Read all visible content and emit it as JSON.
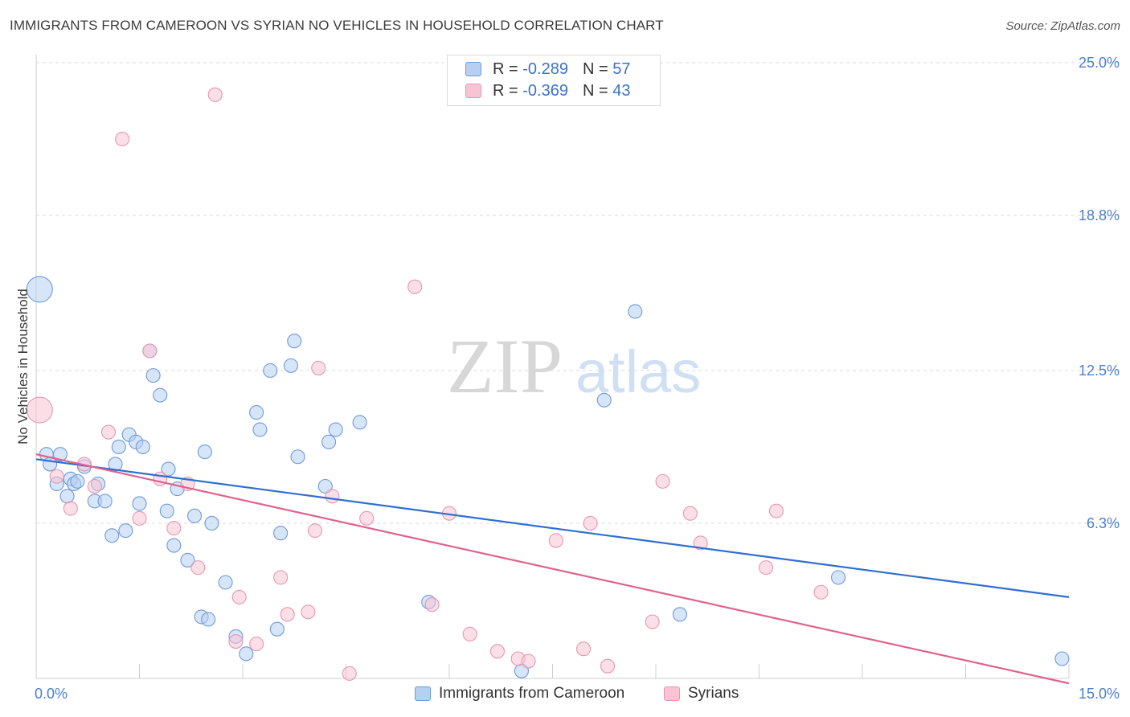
{
  "header": {
    "title": "IMMIGRANTS FROM CAMEROON VS SYRIAN NO VEHICLES IN HOUSEHOLD CORRELATION CHART",
    "source": "Source: ZipAtlas.com"
  },
  "watermark": {
    "zip": "ZIP",
    "atlas": "atlas"
  },
  "legend": {
    "rows": [
      {
        "r_label": "R =",
        "r_value": "-0.289",
        "n_label": "N =",
        "n_value": "57"
      },
      {
        "r_label": "R =",
        "r_value": "-0.369",
        "n_label": "N =",
        "n_value": "43"
      }
    ]
  },
  "bottom_legend": {
    "series_a": "Immigrants from Cameroon",
    "series_b": "Syrians"
  },
  "colors": {
    "blue_fill": "#b6d0f2",
    "blue_stroke": "#6f9ad8",
    "blue_line": "#2f6fd1",
    "pink_fill": "#f8c4d4",
    "pink_stroke": "#e896b0",
    "pink_line": "#e0628d",
    "tick_text": "#4a7fd0",
    "grid": "#d9d9d9"
  },
  "chart_data": {
    "type": "scatter",
    "title": "IMMIGRANTS FROM CAMEROON VS SYRIAN NO VEHICLES IN HOUSEHOLD CORRELATION CHART",
    "xlabel": "",
    "ylabel": "No Vehicles in Household",
    "xlim": [
      0,
      15
    ],
    "ylim": [
      0,
      25
    ],
    "x_tick_labels": [
      "0.0%",
      "15.0%"
    ],
    "y_tick_labels": [
      "6.3%",
      "12.5%",
      "18.8%",
      "25.0%"
    ],
    "y_ticks": [
      6.3,
      12.5,
      18.8,
      25.0
    ],
    "grid": true,
    "legend_position": "top-center",
    "series": [
      {
        "name": "Immigrants from Cameroon",
        "r": -0.289,
        "n": 57,
        "trend": {
          "x0": 0,
          "y0": 8.9,
          "x1": 15,
          "y1": 3.3
        },
        "points": [
          [
            0.05,
            15.8,
            3
          ],
          [
            0.15,
            9.1,
            1
          ],
          [
            0.2,
            8.7,
            1
          ],
          [
            0.35,
            9.1,
            1
          ],
          [
            0.3,
            7.9,
            1
          ],
          [
            0.45,
            7.4,
            1
          ],
          [
            0.5,
            8.1,
            1
          ],
          [
            0.55,
            7.9,
            1
          ],
          [
            0.6,
            8.0,
            1
          ],
          [
            0.7,
            8.6,
            1
          ],
          [
            0.85,
            7.2,
            1
          ],
          [
            0.9,
            7.9,
            1
          ],
          [
            1.0,
            7.2,
            1
          ],
          [
            1.1,
            5.8,
            1
          ],
          [
            1.15,
            8.7,
            1
          ],
          [
            1.2,
            9.4,
            1
          ],
          [
            1.3,
            6.0,
            1
          ],
          [
            1.35,
            9.9,
            1
          ],
          [
            1.45,
            9.6,
            1
          ],
          [
            1.5,
            7.1,
            1
          ],
          [
            1.55,
            9.4,
            1
          ],
          [
            1.65,
            13.3,
            1
          ],
          [
            1.7,
            12.3,
            1
          ],
          [
            1.8,
            11.5,
            1
          ],
          [
            1.9,
            6.8,
            1
          ],
          [
            1.92,
            8.5,
            1
          ],
          [
            2.0,
            5.4,
            1
          ],
          [
            2.05,
            7.7,
            1
          ],
          [
            2.2,
            4.8,
            1
          ],
          [
            2.3,
            6.6,
            1
          ],
          [
            2.4,
            2.5,
            1
          ],
          [
            2.45,
            9.2,
            1
          ],
          [
            2.5,
            2.4,
            1
          ],
          [
            2.55,
            6.3,
            1
          ],
          [
            2.75,
            3.9,
            1
          ],
          [
            2.9,
            1.7,
            1
          ],
          [
            3.05,
            1.0,
            1
          ],
          [
            3.2,
            10.8,
            1
          ],
          [
            3.25,
            10.1,
            1
          ],
          [
            3.4,
            12.5,
            1
          ],
          [
            3.5,
            2.0,
            1
          ],
          [
            3.55,
            5.9,
            1
          ],
          [
            3.7,
            12.7,
            1
          ],
          [
            3.75,
            13.7,
            1
          ],
          [
            3.8,
            9.0,
            1
          ],
          [
            4.2,
            7.8,
            1
          ],
          [
            4.25,
            9.6,
            1
          ],
          [
            4.35,
            10.1,
            1
          ],
          [
            4.7,
            10.4,
            1
          ],
          [
            5.7,
            3.1,
            1
          ],
          [
            7.05,
            0.3,
            1
          ],
          [
            8.25,
            11.3,
            1
          ],
          [
            8.7,
            14.9,
            1
          ],
          [
            9.35,
            2.6,
            1
          ],
          [
            11.65,
            4.1,
            1
          ],
          [
            14.9,
            0.8,
            1
          ]
        ]
      },
      {
        "name": "Syrians",
        "r": -0.369,
        "n": 43,
        "trend": {
          "x0": 0,
          "y0": 9.1,
          "x1": 15,
          "y1": -0.2
        },
        "points": [
          [
            0.05,
            10.9,
            3
          ],
          [
            0.3,
            8.2,
            1
          ],
          [
            0.5,
            6.9,
            1
          ],
          [
            0.7,
            8.7,
            1
          ],
          [
            0.85,
            7.8,
            1
          ],
          [
            1.05,
            10.0,
            1
          ],
          [
            1.25,
            21.9,
            1
          ],
          [
            1.5,
            6.5,
            1
          ],
          [
            1.65,
            13.3,
            1
          ],
          [
            1.8,
            8.1,
            1
          ],
          [
            2.0,
            6.1,
            1
          ],
          [
            2.2,
            7.9,
            1
          ],
          [
            2.35,
            4.5,
            1
          ],
          [
            2.6,
            23.7,
            1
          ],
          [
            2.9,
            1.5,
            1
          ],
          [
            2.95,
            3.3,
            1
          ],
          [
            3.2,
            1.4,
            1
          ],
          [
            3.55,
            4.1,
            1
          ],
          [
            3.65,
            2.6,
            1
          ],
          [
            4.1,
            12.6,
            1
          ],
          [
            3.95,
            2.7,
            1
          ],
          [
            4.05,
            6.0,
            1
          ],
          [
            4.3,
            7.4,
            1
          ],
          [
            4.55,
            0.2,
            1
          ],
          [
            4.8,
            6.5,
            1
          ],
          [
            5.5,
            15.9,
            1
          ],
          [
            5.75,
            3.0,
            1
          ],
          [
            6.0,
            6.7,
            1
          ],
          [
            6.3,
            1.8,
            1
          ],
          [
            6.7,
            1.1,
            1
          ],
          [
            7.0,
            0.8,
            1
          ],
          [
            7.15,
            0.7,
            1
          ],
          [
            7.55,
            5.6,
            1
          ],
          [
            7.95,
            1.2,
            1
          ],
          [
            8.05,
            6.3,
            1
          ],
          [
            8.3,
            0.5,
            1
          ],
          [
            8.95,
            2.3,
            1
          ],
          [
            9.1,
            8.0,
            1
          ],
          [
            9.5,
            6.7,
            1
          ],
          [
            9.65,
            5.5,
            1
          ],
          [
            10.6,
            4.5,
            1
          ],
          [
            10.75,
            6.8,
            1
          ],
          [
            11.4,
            3.5,
            1
          ]
        ]
      }
    ]
  }
}
